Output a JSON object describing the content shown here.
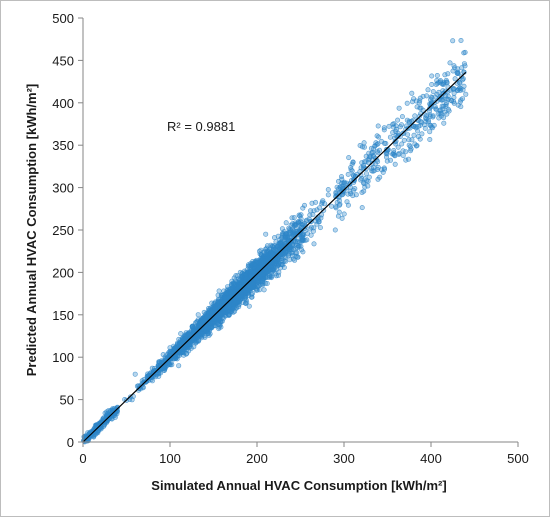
{
  "chart_data": {
    "type": "scatter",
    "xlabel": "Simulated Annual HVAC Consumption [kWh/m²]",
    "ylabel": "Predicted Annual HVAC Consumption [kWh/m²]",
    "xlim": [
      0,
      500
    ],
    "ylim": [
      0,
      500
    ],
    "xticks": [
      "0",
      "100",
      "200",
      "300",
      "400",
      "500"
    ],
    "yticks": [
      "0",
      "50",
      "100",
      "150",
      "200",
      "250",
      "300",
      "350",
      "400",
      "450",
      "500"
    ],
    "annotation": "R² = 0.9881",
    "grid": false,
    "legend": "none",
    "marker_color": "#2e86c8",
    "fit_line": {
      "x": [
        0,
        440
      ],
      "y": [
        0,
        436
      ]
    },
    "point_cloud": {
      "x_range": [
        0,
        440
      ],
      "trend_slope": 0.99,
      "scatter_relative_sd": 0.045,
      "sample_points": [
        [
          5,
          5
        ],
        [
          20,
          21
        ],
        [
          50,
          49
        ],
        [
          80,
          80
        ],
        [
          100,
          101
        ],
        [
          150,
          148
        ],
        [
          200,
          198
        ],
        [
          250,
          249
        ],
        [
          300,
          296
        ],
        [
          350,
          345
        ],
        [
          400,
          395
        ],
        [
          430,
          435
        ],
        [
          440,
          410
        ],
        [
          60,
          80
        ],
        [
          110,
          90
        ],
        [
          210,
          245
        ],
        [
          290,
          250
        ],
        [
          380,
          372
        ]
      ]
    }
  }
}
